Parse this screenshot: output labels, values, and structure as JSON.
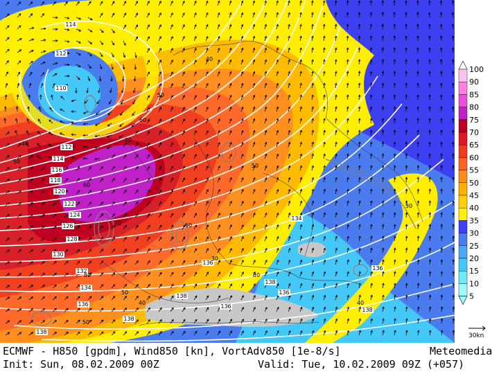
{
  "footer": {
    "model_line": "ECMWF - H850 [gpdm], Wind850 [kn], VortAdv850 [1e-8/s]",
    "brand": "Meteomedia",
    "init": "Init: Sun, 08.02.2009 00Z",
    "valid": "Valid: Tue, 10.02.2009 09Z (+057)"
  },
  "legend": {
    "unit_ref": "30kn",
    "ticks": [
      "100",
      "90",
      "85",
      "80",
      "75",
      "70",
      "65",
      "60",
      "55",
      "50",
      "45",
      "40",
      "35",
      "30",
      "25",
      "20",
      "15",
      "10",
      "5"
    ],
    "colors": [
      "#ffffff",
      "#ffc0f0",
      "#ff80e0",
      "#ee50dd",
      "#c020c8",
      "#c00020",
      "#e01828",
      "#f03c20",
      "#f86428",
      "#ff8c1a",
      "#ffb000",
      "#ffd000",
      "#fff000",
      "#4040ff",
      "#4a7cf0",
      "#4aa8f8",
      "#44c8f8",
      "#70e8f8",
      "#a0f8f8"
    ]
  },
  "map": {
    "colors": {
      "wind_30_35": "#3c40f0",
      "wind_35_40": "#ffee00",
      "wind_40_45": "#ffbb00",
      "wind_45_50": "#ff9020",
      "wind_50_55": "#ff6a2a",
      "wind_55_60": "#f04020",
      "wind_60_65": "#d82028",
      "wind_65_70": "#c00020",
      "wind_70_75": "#c020c8",
      "wind_25_30": "#4a7cf0",
      "wind_15_20": "#44c8f8",
      "terrain": "#c8c8c8"
    },
    "height_labels": [
      "114",
      "112",
      "110",
      "112",
      "114",
      "116",
      "118",
      "120",
      "122",
      "124",
      "126",
      "128",
      "130",
      "132",
      "134",
      "136",
      "138",
      "134",
      "136",
      "138",
      "136",
      "138",
      "136",
      "138",
      "136",
      "138"
    ],
    "wind_labels": [
      "40",
      "50",
      "60",
      "70",
      "60",
      "50",
      "70",
      "80",
      "60",
      "50",
      "40",
      "40",
      "50",
      "30",
      "50",
      "30",
      "40",
      "30"
    ]
  }
}
